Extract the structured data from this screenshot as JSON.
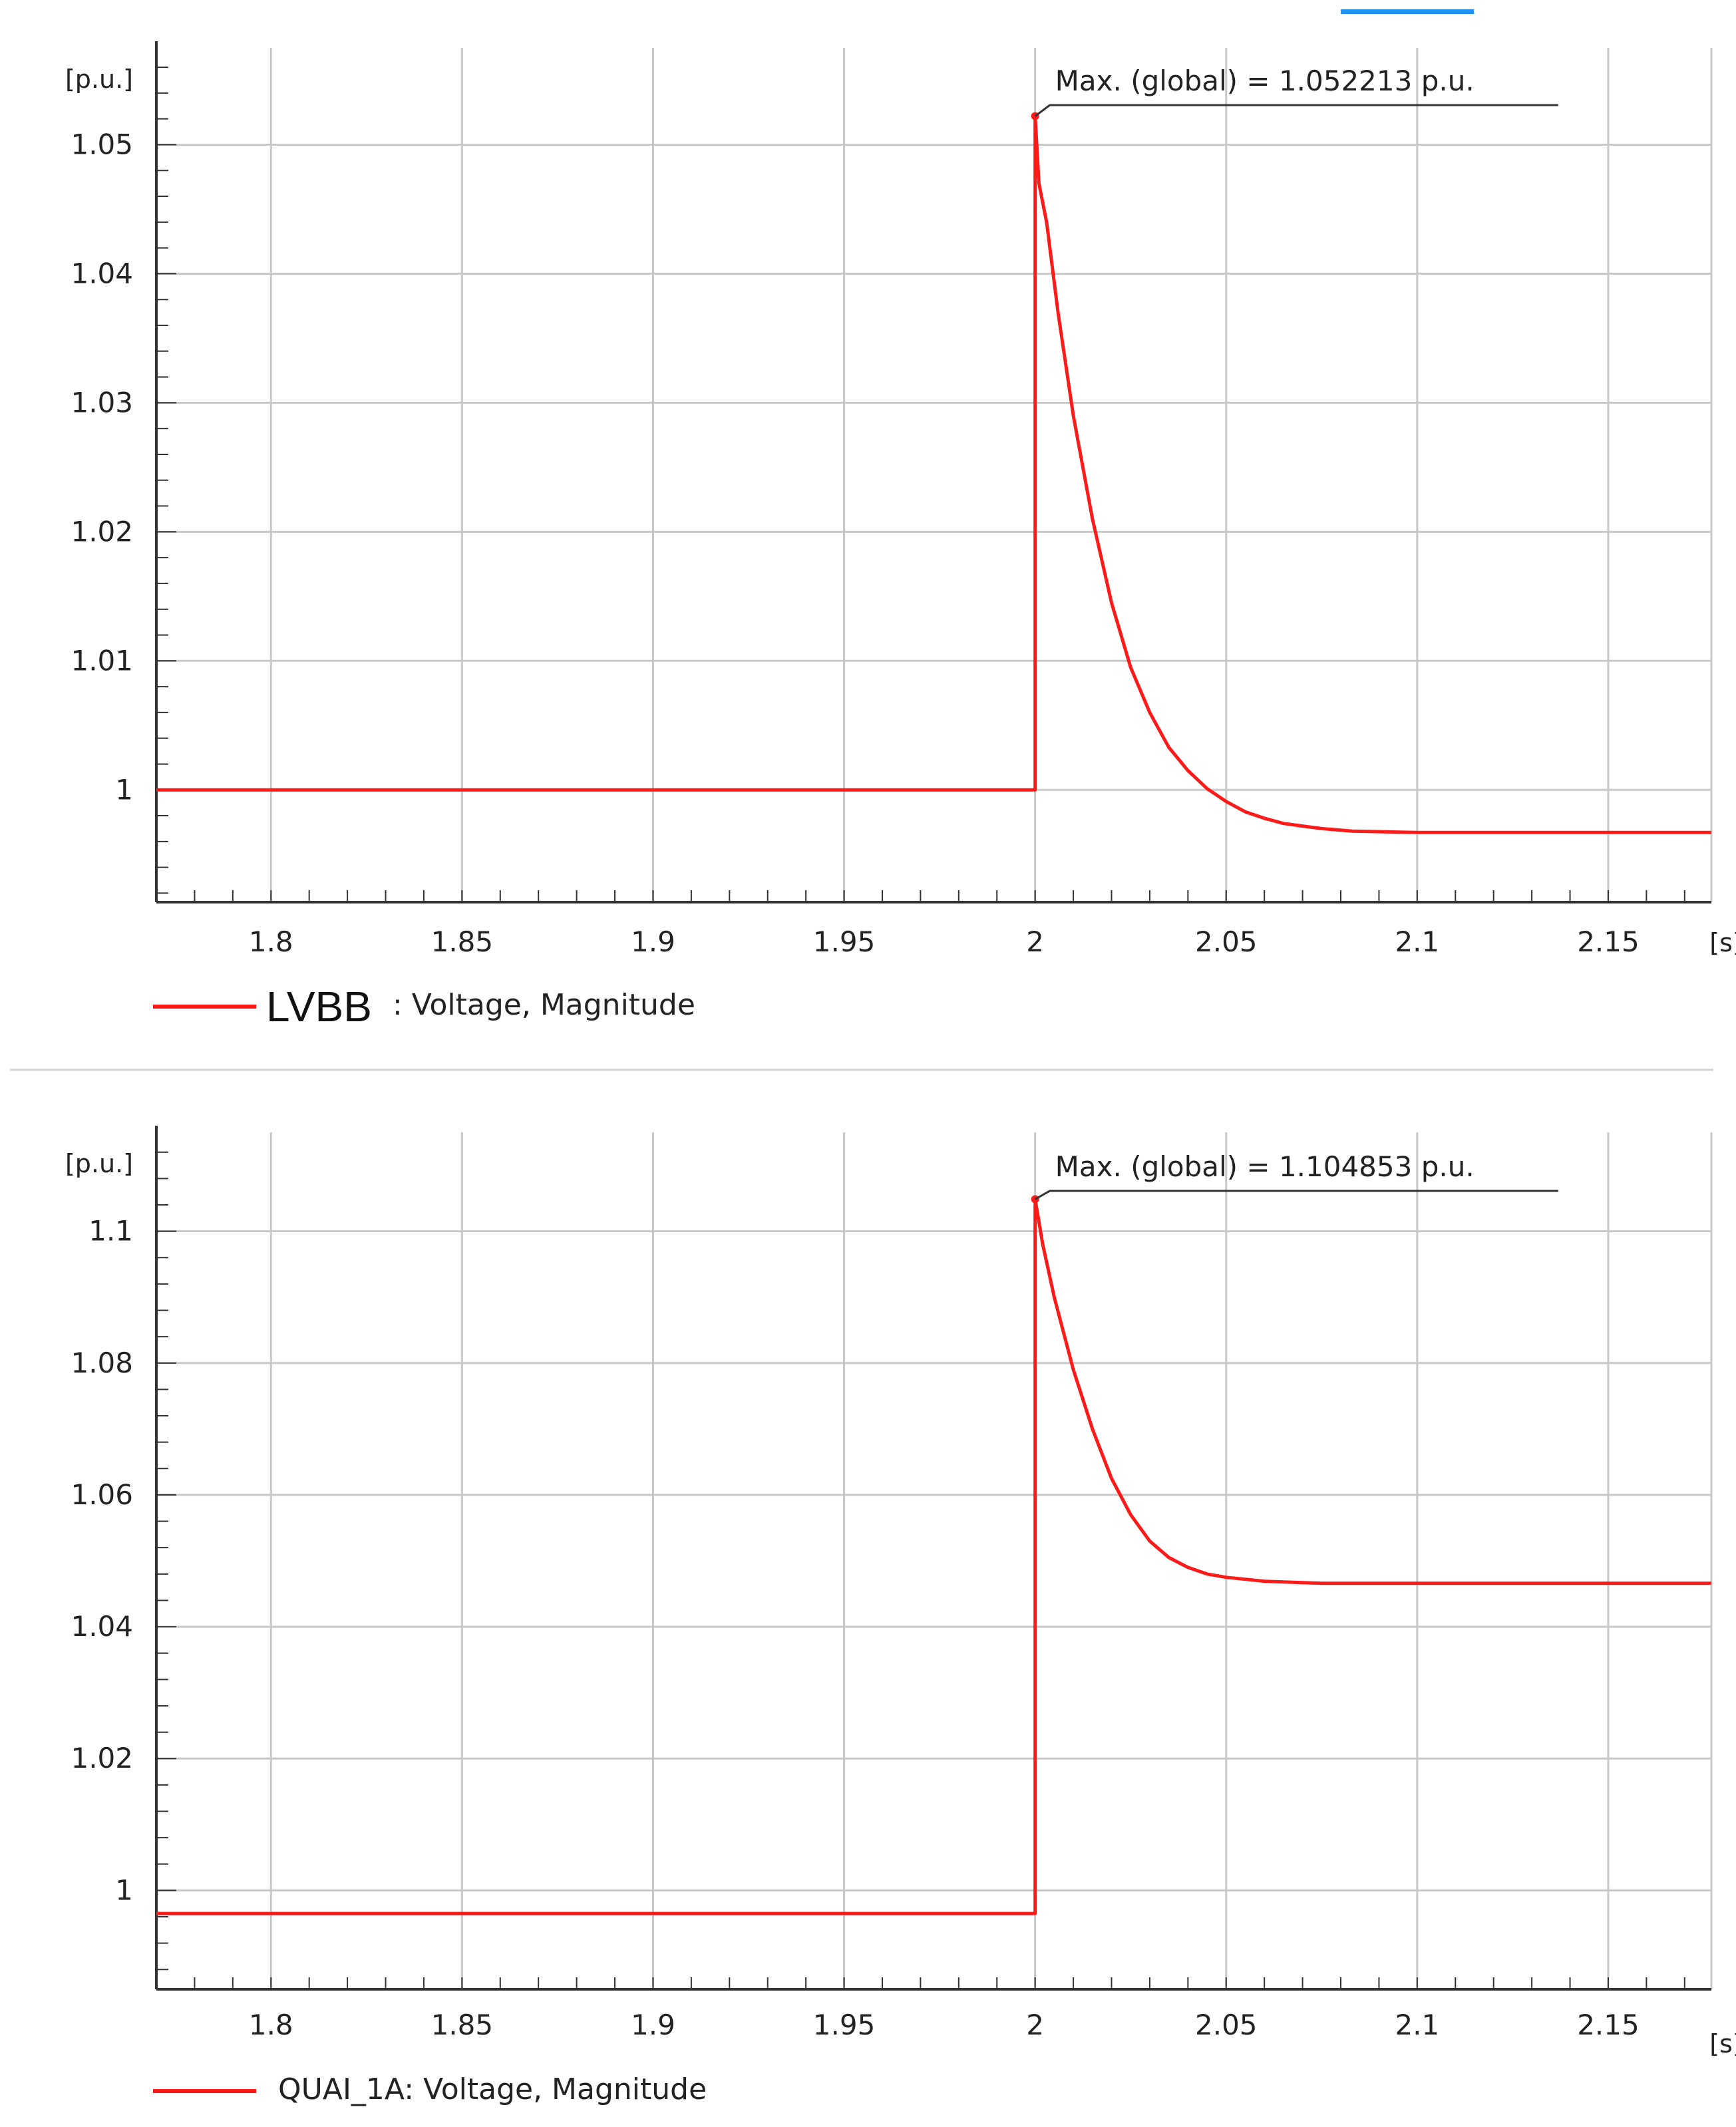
{
  "colors": {
    "series": "#ff1a1a",
    "grid": "#c8c8c8",
    "axis": "#333333",
    "text": "#222222",
    "separator": "#d2d2d2",
    "accent_bar": "#1e90ff"
  },
  "chart_data": [
    {
      "type": "line",
      "xlabel": "[s]",
      "ylabel": "[p.u.]",
      "xlim": [
        1.77,
        2.177
      ],
      "ylim": [
        0.9913,
        1.0575
      ],
      "x_ticks": [
        1.8,
        1.85,
        1.9,
        1.95,
        2,
        2.05,
        2.1,
        2.15
      ],
      "x_tick_labels": [
        "1.8",
        "1.85",
        "1.9",
        "1.95",
        "2",
        "2.05",
        "2.1",
        "2.15"
      ],
      "y_ticks": [
        1,
        1.01,
        1.02,
        1.03,
        1.04,
        1.05
      ],
      "y_tick_labels": [
        "1",
        "1.01",
        "1.02",
        "1.03",
        "1.04",
        "1.05"
      ],
      "grid": true,
      "legend": {
        "position": "bottom-left",
        "name": "LVBB",
        "suffix": ": Voltage, Magnitude"
      },
      "annotation": {
        "text": "Max. (global) = 1.052213 p.u.",
        "x": 2.0,
        "y": 1.052213
      },
      "series": [
        {
          "x": [
            1.77,
            2.0,
            2.0,
            2.001,
            2.003,
            2.006,
            2.01,
            2.015,
            2.02,
            2.025,
            2.03,
            2.035,
            2.04,
            2.045,
            2.05,
            2.055,
            2.06,
            2.065,
            2.07,
            2.075,
            2.083,
            2.1,
            2.177
          ],
          "values": [
            1.0,
            1.0,
            1.052213,
            1.047,
            1.044,
            1.037,
            1.029,
            1.021,
            1.0145,
            1.0095,
            1.006,
            1.0033,
            1.0015,
            1.0001,
            0.9991,
            0.9983,
            0.9978,
            0.9974,
            0.9972,
            0.997,
            0.9968,
            0.9967,
            0.9967
          ]
        }
      ]
    },
    {
      "type": "line",
      "xlabel": "[s]",
      "ylabel": "[p.u.]",
      "xlim": [
        1.77,
        2.177
      ],
      "ylim": [
        0.985,
        1.115
      ],
      "x_ticks": [
        1.8,
        1.85,
        1.9,
        1.95,
        2,
        2.05,
        2.1,
        2.15
      ],
      "x_tick_labels": [
        "1.8",
        "1.85",
        "1.9",
        "1.95",
        "2",
        "2.05",
        "2.1",
        "2.15"
      ],
      "y_ticks": [
        1,
        1.02,
        1.04,
        1.06,
        1.08,
        1.1
      ],
      "y_tick_labels": [
        "1",
        "1.02",
        "1.04",
        "1.06",
        "1.08",
        "1.1"
      ],
      "grid": true,
      "legend": {
        "position": "bottom-left",
        "name": "",
        "suffix": "QUAI_1A: Voltage, Magnitude"
      },
      "annotation": {
        "text": "Max. (global) = 1.104853 p.u.",
        "x": 2.0,
        "y": 1.104853
      },
      "series": [
        {
          "x": [
            1.77,
            2.0,
            2.0,
            2.002,
            2.005,
            2.01,
            2.015,
            2.02,
            2.025,
            2.03,
            2.035,
            2.04,
            2.045,
            2.05,
            2.055,
            2.06,
            2.065,
            2.07,
            2.075,
            2.1,
            2.177
          ],
          "values": [
            0.9965,
            0.9965,
            1.104853,
            1.098,
            1.09,
            1.079,
            1.07,
            1.0625,
            1.057,
            1.053,
            1.0505,
            1.049,
            1.048,
            1.0475,
            1.0472,
            1.0469,
            1.0468,
            1.0467,
            1.0466,
            1.0466,
            1.0466
          ]
        }
      ]
    }
  ]
}
